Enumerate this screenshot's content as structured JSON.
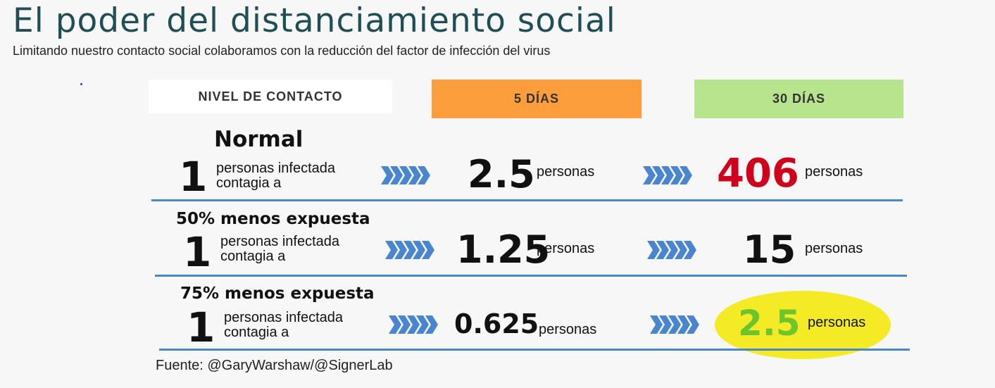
{
  "title": "El poder del distanciamiento social",
  "subtitle": "Limitando nuestro contacto social colaboramos con la reducción del factor de infección del virus",
  "headers": {
    "contact": "NIVEL DE CONTACTO",
    "days5": "5 DÍAS",
    "days30": "30 DÍAS"
  },
  "rows": [
    {
      "level": "Normal",
      "one": "1",
      "line1": "personas infectada",
      "line2": "contagia a",
      "val5": "2.5",
      "unit5": "personas",
      "val30": "406",
      "unit30": "personas",
      "val30_color": "#d0021b"
    },
    {
      "level": "50% menos expuesta",
      "one": "1",
      "line1": "personas infectada",
      "line2": "contagia a",
      "val5": "1.25",
      "unit5": "personas",
      "val30": "15",
      "unit30": "personas",
      "val30_color": "#111111"
    },
    {
      "level": "75% menos expuesta",
      "one": "1",
      "line1": "personas infectada",
      "line2": "contagia a",
      "val5": "0.625",
      "unit5": "personas",
      "val30": "2.5",
      "unit30": "personas",
      "val30_color": "#6cc62b"
    }
  ],
  "source": "Fuente: @GaryWarshaw/@SignerLab",
  "colors": {
    "header_5": "#fd9e3c",
    "header_30": "#b7e48c",
    "separator": "#4a86cf",
    "chevron": "#4a86cf",
    "highlight": "#f4ea25",
    "title": "#1f4f54"
  },
  "icons": {
    "arrow": "chevron-arrows-icon"
  }
}
